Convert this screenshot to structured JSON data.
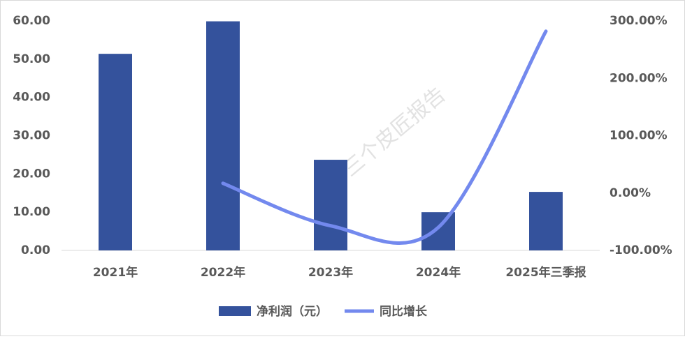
{
  "chart_data": {
    "type": "bar-line",
    "categories": [
      "2021年",
      "2022年",
      "2023年",
      "2024年",
      "2025年三季报"
    ],
    "series": [
      {
        "name": "净利润（元）",
        "type": "bar",
        "color": "#34529c",
        "values": [
          51.4,
          59.9,
          23.7,
          10.0,
          15.3
        ]
      },
      {
        "name": "同比增长",
        "type": "line",
        "axis": "y2",
        "color": "#7389ee",
        "values": [
          null,
          17,
          -57,
          -60,
          282
        ]
      }
    ],
    "ylim": [
      0,
      60
    ],
    "yticks": [
      {
        "value": 0,
        "label": "0.00"
      },
      {
        "value": 10,
        "label": "10.00"
      },
      {
        "value": 20,
        "label": "20.00"
      },
      {
        "value": 30,
        "label": "30.00"
      },
      {
        "value": 40,
        "label": "40.00"
      },
      {
        "value": 50,
        "label": "50.00"
      },
      {
        "value": 60,
        "label": "60.00"
      }
    ],
    "y2lim": [
      -100,
      300
    ],
    "y2ticks": [
      {
        "value": -100,
        "label": "-100.00%"
      },
      {
        "value": 0,
        "label": "0.00%"
      },
      {
        "value": 100,
        "label": "100.00%"
      },
      {
        "value": 200,
        "label": "200.00%"
      },
      {
        "value": 300,
        "label": "300.00%"
      }
    ],
    "legend": "bottom",
    "watermark": "三个皮匠报告"
  }
}
